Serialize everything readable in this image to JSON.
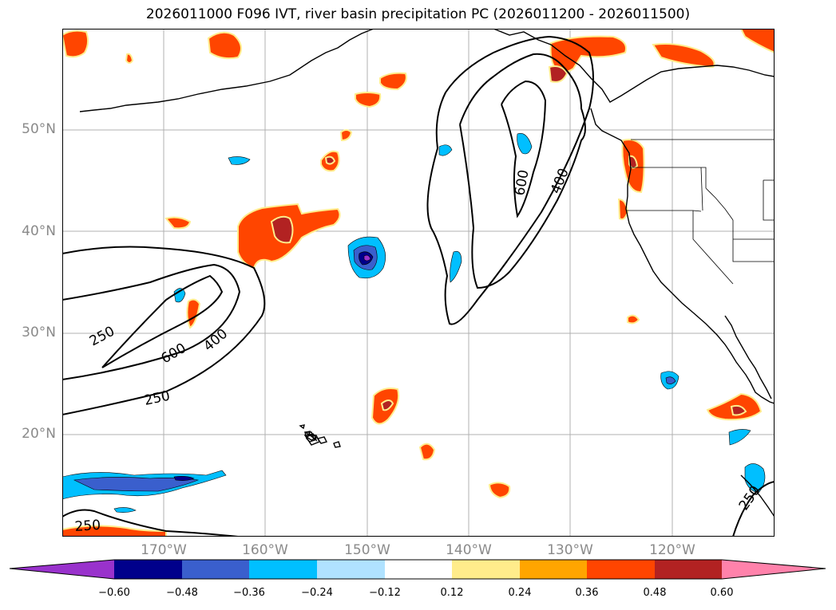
{
  "title": "2026011000 F096 IVT, river basin precipitation PC (2026011200 - 2026011500)",
  "map": {
    "projection": "lat-lon",
    "lon_range": [
      180,
      -110
    ],
    "lat_range": [
      10,
      60
    ],
    "lat_ticks": [
      "50°N",
      "40°N",
      "30°N",
      "20°N"
    ],
    "lon_ticks": [
      "170°W",
      "160°W",
      "150°W",
      "140°W",
      "130°W",
      "120°W"
    ],
    "contour_levels": [
      250,
      400,
      600
    ],
    "contour_labels": [
      {
        "text": "250"
      },
      {
        "text": "600"
      },
      {
        "text": "400"
      },
      {
        "text": "250"
      },
      {
        "text": "250"
      },
      {
        "text": "600"
      },
      {
        "text": "400"
      },
      {
        "text": "250"
      }
    ],
    "contour_color": "#000000",
    "gridline_color": "#b0b0b0"
  },
  "colorbar": {
    "labels": [
      "−0.60",
      "−0.48",
      "−0.36",
      "−0.24",
      "−0.12",
      "0.12",
      "0.24",
      "0.36",
      "0.48",
      "0.60"
    ],
    "colors": [
      "#9932cc",
      "#00008b",
      "#3a5fcd",
      "#00bfff",
      "#b0e2ff",
      "#ffffff",
      "#ffec8b",
      "#ffa500",
      "#ff4500",
      "#b22222",
      "#ff82ab"
    ]
  }
}
